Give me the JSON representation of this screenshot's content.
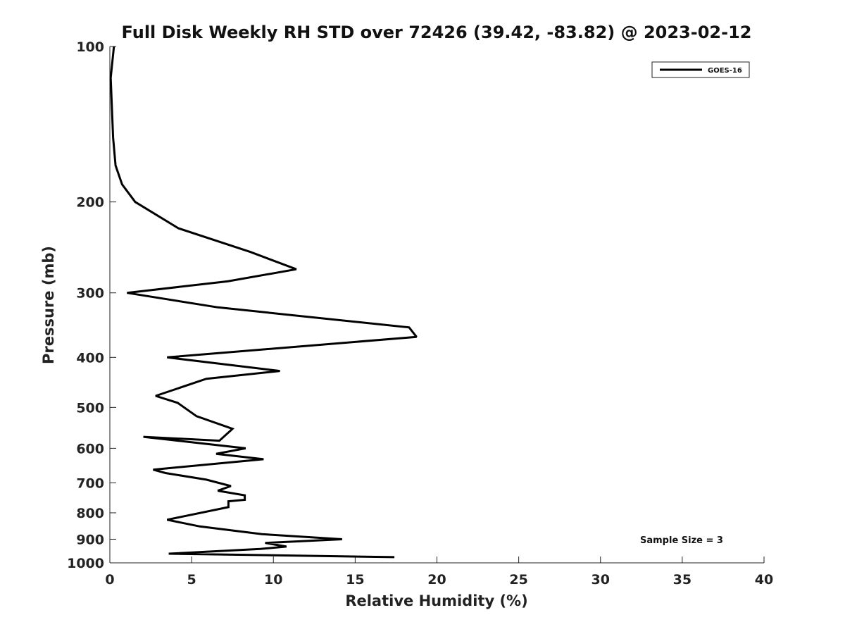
{
  "chart_data": {
    "type": "line",
    "title": "Full Disk Weekly RH STD over 72426 (39.42, -83.82) @ 2023-02-12",
    "xlabel": "Relative Humidity (%)",
    "ylabel": "Pressure (mb)",
    "xlim": [
      0,
      40
    ],
    "ylim": [
      100,
      1000
    ],
    "yscale": "log",
    "y_reversed": true,
    "xticks": [
      0,
      5,
      10,
      15,
      20,
      25,
      30,
      35,
      40
    ],
    "yticks": [
      100,
      200,
      300,
      400,
      500,
      600,
      700,
      800,
      900,
      1000
    ],
    "grid": false,
    "legend_position": "top-right",
    "annotation": "Sample Size = 3",
    "series": [
      {
        "name": "GOES-16",
        "color": "#000000",
        "x": [
          0.25,
          0.05,
          0.2,
          0.35,
          0.75,
          1.55,
          4.2,
          8.6,
          11.4,
          7.2,
          1.05,
          6.6,
          18.3,
          18.75,
          3.5,
          10.4,
          5.9,
          2.8,
          4.15,
          5.3,
          7.5,
          6.7,
          2.05,
          8.3,
          6.5,
          9.4,
          2.65,
          3.4,
          5.9,
          7.4,
          6.6,
          8.25,
          8.25,
          7.25,
          7.25,
          3.5,
          5.5,
          9.3,
          14.2,
          9.5,
          10.8,
          9.2,
          3.6,
          17.4
        ],
        "y": [
          100,
          115,
          150,
          170,
          185,
          200,
          225,
          250,
          270,
          285,
          300,
          320,
          350,
          365,
          400,
          425,
          440,
          475,
          490,
          520,
          550,
          580,
          570,
          600,
          615,
          630,
          660,
          670,
          690,
          710,
          725,
          740,
          755,
          760,
          780,
          825,
          850,
          880,
          900,
          915,
          930,
          940,
          960,
          975
        ]
      }
    ]
  }
}
